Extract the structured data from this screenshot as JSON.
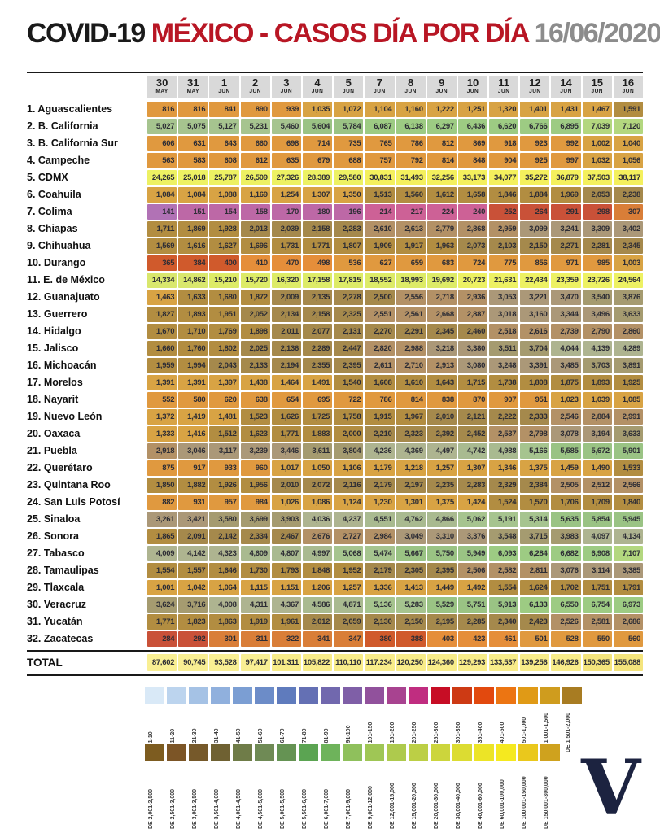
{
  "header": {
    "app": "COVID-19",
    "subtitle": "MÉXICO - CASOS DÍA POR DÍA",
    "date": "16/06/2020"
  },
  "colors": {
    "title_black": "#1a1a1a",
    "title_red": "#b81624",
    "date_gray": "#8c8c8c",
    "header_bg": "#d9d9d9",
    "rule": "#191919",
    "logo_navy": "#1c2340"
  },
  "logo": {
    "letter": "V"
  },
  "chart_data": {
    "type": "heatmap",
    "title": "COVID-19 MÉXICO - CASOS DÍA POR DÍA",
    "date": "16/06/2020",
    "xlabel": "Fecha",
    "ylabel": "Estado",
    "legend_position": "bottom",
    "legend_split": 20,
    "columns": [
      {
        "day": "30",
        "month": "MAY"
      },
      {
        "day": "31",
        "month": "MAY"
      },
      {
        "day": "1",
        "month": "JUN"
      },
      {
        "day": "2",
        "month": "JUN"
      },
      {
        "day": "3",
        "month": "JUN"
      },
      {
        "day": "4",
        "month": "JUN"
      },
      {
        "day": "5",
        "month": "JUN"
      },
      {
        "day": "7",
        "month": "JUN"
      },
      {
        "day": "8",
        "month": "JUN"
      },
      {
        "day": "9",
        "month": "JUN"
      },
      {
        "day": "10",
        "month": "JUN"
      },
      {
        "day": "11",
        "month": "JUN"
      },
      {
        "day": "12",
        "month": "JUN"
      },
      {
        "day": "14",
        "month": "JUN"
      },
      {
        "day": "15",
        "month": "JUN"
      },
      {
        "day": "16",
        "month": "JUN"
      }
    ],
    "rows": [
      {
        "label": "1. Aguascalientes",
        "values": [
          "816",
          "816",
          "841",
          "890",
          "939",
          "1,035",
          "1,072",
          "1,104",
          "1,160",
          "1,222",
          "1,251",
          "1,320",
          "1,401",
          "1,431",
          "1,467",
          "1,591"
        ]
      },
      {
        "label": "2. B. California",
        "values": [
          "5,027",
          "5,075",
          "5,127",
          "5,231",
          "5,460",
          "5,604",
          "5,784",
          "6,087",
          "6,138",
          "6,297",
          "6,436",
          "6,620",
          "6,766",
          "6,895",
          "7,039",
          "7,120"
        ]
      },
      {
        "label": "3. B. California Sur",
        "values": [
          "606",
          "631",
          "643",
          "660",
          "698",
          "714",
          "735",
          "765",
          "786",
          "812",
          "869",
          "918",
          "923",
          "992",
          "1,002",
          "1,040"
        ]
      },
      {
        "label": "4. Campeche",
        "values": [
          "563",
          "583",
          "608",
          "612",
          "635",
          "679",
          "688",
          "757",
          "792",
          "814",
          "848",
          "904",
          "925",
          "997",
          "1,032",
          "1,056"
        ]
      },
      {
        "label": "5. CDMX",
        "values": [
          "24,265",
          "25,018",
          "25,787",
          "26,509",
          "27,326",
          "28,389",
          "29,580",
          "30,831",
          "31,493",
          "32,256",
          "33,173",
          "34,077",
          "35,272",
          "36,879",
          "37,503",
          "38,117"
        ]
      },
      {
        "label": "6. Coahuila",
        "values": [
          "1,084",
          "1,084",
          "1,088",
          "1,169",
          "1,254",
          "1,307",
          "1,350",
          "1,513",
          "1,560",
          "1,612",
          "1,658",
          "1,846",
          "1,884",
          "1,969",
          "2,053",
          "2,238"
        ]
      },
      {
        "label": "7. Colima",
        "values": [
          "141",
          "151",
          "154",
          "158",
          "170",
          "180",
          "196",
          "214",
          "217",
          "224",
          "240",
          "252",
          "264",
          "291",
          "298",
          "307"
        ]
      },
      {
        "label": "8. Chiapas",
        "values": [
          "1,711",
          "1,869",
          "1,928",
          "2,013",
          "2,039",
          "2,158",
          "2,283",
          "2,610",
          "2,613",
          "2,779",
          "2,868",
          "2,959",
          "3,099",
          "3,241",
          "3,309",
          "3,402"
        ]
      },
      {
        "label": "9. Chihuahua",
        "values": [
          "1,569",
          "1,616",
          "1,627",
          "1,696",
          "1,731",
          "1,771",
          "1,807",
          "1,909",
          "1,917",
          "1,963",
          "2,073",
          "2,103",
          "2,150",
          "2,271",
          "2,281",
          "2,345"
        ]
      },
      {
        "label": "10. Durango",
        "values": [
          "365",
          "384",
          "400",
          "410",
          "470",
          "498",
          "536",
          "627",
          "659",
          "683",
          "724",
          "775",
          "856",
          "971",
          "985",
          "1,003"
        ]
      },
      {
        "label": "11. E. de México",
        "values": [
          "14,334",
          "14,862",
          "15,210",
          "15,720",
          "16,320",
          "17,158",
          "17,815",
          "18,552",
          "18,993",
          "19,692",
          "20,723",
          "21,631",
          "22,434",
          "23,359",
          "23,726",
          "24,564"
        ]
      },
      {
        "label": "12. Guanajuato",
        "values": [
          "1,463",
          "1,633",
          "1,680",
          "1,872",
          "2,009",
          "2,135",
          "2,278",
          "2,500",
          "2,556",
          "2,718",
          "2,936",
          "3,053",
          "3,221",
          "3,470",
          "3,540",
          "3,876"
        ]
      },
      {
        "label": "13. Guerrero",
        "values": [
          "1,827",
          "1,893",
          "1,951",
          "2,052",
          "2,134",
          "2,158",
          "2,325",
          "2,551",
          "2,561",
          "2,668",
          "2,887",
          "3,018",
          "3,160",
          "3,344",
          "3,496",
          "3,633"
        ]
      },
      {
        "label": "14. Hidalgo",
        "values": [
          "1,670",
          "1,710",
          "1,769",
          "1,898",
          "2,011",
          "2,077",
          "2,131",
          "2,270",
          "2,291",
          "2,345",
          "2,460",
          "2,518",
          "2,616",
          "2,739",
          "2,790",
          "2,860"
        ]
      },
      {
        "label": "15. Jalisco",
        "values": [
          "1,660",
          "1,760",
          "1,802",
          "2,025",
          "2,136",
          "2,289",
          "2,447",
          "2,820",
          "2,988",
          "3,218",
          "3,380",
          "3,511",
          "3,704",
          "4,044",
          "4,139",
          "4,289"
        ]
      },
      {
        "label": "16. Michoacán",
        "values": [
          "1,959",
          "1,994",
          "2,043",
          "2,133",
          "2,194",
          "2,355",
          "2,395",
          "2,611",
          "2,710",
          "2,913",
          "3,080",
          "3,248",
          "3,391",
          "3,485",
          "3,703",
          "3,891"
        ]
      },
      {
        "label": "17. Morelos",
        "values": [
          "1,391",
          "1,391",
          "1,397",
          "1,438",
          "1,464",
          "1,491",
          "1,540",
          "1,608",
          "1,610",
          "1,643",
          "1,715",
          "1,738",
          "1,808",
          "1,875",
          "1,893",
          "1,925"
        ]
      },
      {
        "label": "18. Nayarit",
        "values": [
          "552",
          "580",
          "620",
          "638",
          "654",
          "695",
          "722",
          "786",
          "814",
          "838",
          "870",
          "907",
          "951",
          "1,023",
          "1,039",
          "1,085"
        ]
      },
      {
        "label": "19. Nuevo León",
        "values": [
          "1,372",
          "1,419",
          "1,481",
          "1,523",
          "1,626",
          "1,725",
          "1,758",
          "1,915",
          "1,967",
          "2,010",
          "2,121",
          "2,222",
          "2,333",
          "2,546",
          "2,884",
          "2,991"
        ]
      },
      {
        "label": "20. Oaxaca",
        "values": [
          "1,333",
          "1,416",
          "1,512",
          "1,623",
          "1,771",
          "1,883",
          "2,000",
          "2,210",
          "2,323",
          "2,392",
          "2,452",
          "2,537",
          "2,798",
          "3,078",
          "3,194",
          "3,633"
        ]
      },
      {
        "label": "21. Puebla",
        "values": [
          "2,918",
          "3,046",
          "3,117",
          "3,239",
          "3,446",
          "3,611",
          "3,804",
          "4,236",
          "4,369",
          "4,497",
          "4,742",
          "4,988",
          "5,166",
          "5,585",
          "5,672",
          "5,901"
        ]
      },
      {
        "label": "22. Querétaro",
        "values": [
          "875",
          "917",
          "933",
          "960",
          "1,017",
          "1,050",
          "1,106",
          "1,179",
          "1,218",
          "1,257",
          "1,307",
          "1,346",
          "1,375",
          "1,459",
          "1,490",
          "1,533"
        ]
      },
      {
        "label": "23. Quintana Roo",
        "values": [
          "1,850",
          "1,882",
          "1,926",
          "1,956",
          "2,010",
          "2,072",
          "2,116",
          "2,179",
          "2,197",
          "2,235",
          "2,283",
          "2,329",
          "2,384",
          "2,505",
          "2,512",
          "2,566"
        ]
      },
      {
        "label": "24. San Luis Potosí",
        "values": [
          "882",
          "931",
          "957",
          "984",
          "1,026",
          "1,086",
          "1,124",
          "1,230",
          "1,301",
          "1,375",
          "1,424",
          "1,524",
          "1,570",
          "1,706",
          "1,709",
          "1,840"
        ]
      },
      {
        "label": "25. Sinaloa",
        "values": [
          "3,261",
          "3,421",
          "3,580",
          "3,699",
          "3,903",
          "4,036",
          "4,237",
          "4,551",
          "4,762",
          "4,866",
          "5,062",
          "5,191",
          "5,314",
          "5,635",
          "5,854",
          "5,945"
        ]
      },
      {
        "label": "26. Sonora",
        "values": [
          "1,865",
          "2,091",
          "2,142",
          "2,334",
          "2,467",
          "2,676",
          "2,727",
          "2,984",
          "3,049",
          "3,310",
          "3,376",
          "3,548",
          "3,715",
          "3,983",
          "4,097",
          "4,134"
        ]
      },
      {
        "label": "27. Tabasco",
        "values": [
          "4,009",
          "4,142",
          "4,323",
          "4,609",
          "4,807",
          "4,997",
          "5,068",
          "5,474",
          "5,667",
          "5,750",
          "5,949",
          "6,093",
          "6,284",
          "6,682",
          "6,908",
          "7,107"
        ]
      },
      {
        "label": "28. Tamaulipas",
        "values": [
          "1,554",
          "1,557",
          "1,646",
          "1,730",
          "1,793",
          "1,848",
          "1,952",
          "2,179",
          "2,305",
          "2,395",
          "2,506",
          "2,582",
          "2,811",
          "3,076",
          "3,114",
          "3,385"
        ]
      },
      {
        "label": "29. Tlaxcala",
        "values": [
          "1,001",
          "1,042",
          "1,064",
          "1,115",
          "1,151",
          "1,206",
          "1,257",
          "1,336",
          "1,413",
          "1,449",
          "1,492",
          "1,554",
          "1,624",
          "1,702",
          "1,751",
          "1,791"
        ]
      },
      {
        "label": "30. Veracruz",
        "values": [
          "3,624",
          "3,716",
          "4,008",
          "4,311",
          "4,367",
          "4,586",
          "4,871",
          "5,136",
          "5,283",
          "5,529",
          "5,751",
          "5,913",
          "6,133",
          "6,550",
          "6,754",
          "6,973"
        ]
      },
      {
        "label": "31. Yucatán",
        "values": [
          "1,771",
          "1,823",
          "1,863",
          "1,919",
          "1,961",
          "2,012",
          "2,059",
          "2,130",
          "2,150",
          "2,195",
          "2,285",
          "2,340",
          "2,423",
          "2,526",
          "2,581",
          "2,686"
        ]
      },
      {
        "label": "32. Zacatecas",
        "values": [
          "284",
          "292",
          "301",
          "311",
          "322",
          "341",
          "347",
          "380",
          "388",
          "403",
          "423",
          "461",
          "501",
          "528",
          "550",
          "560"
        ]
      }
    ],
    "total": {
      "label": "TOTAL",
      "values": [
        "87,602",
        "90,745",
        "93,528",
        "97,417",
        "101,311",
        "105,822",
        "110,110",
        "117.234",
        "120,250",
        "124,360",
        "129,293",
        "133,537",
        "139,256",
        "146,926",
        "150,365",
        "155,088"
      ]
    },
    "value_ranges": [
      {
        "min": 1,
        "max": 10,
        "label": "DE 1-10",
        "legend": "#d9e9f7",
        "cell": "#e4f0fa"
      },
      {
        "min": 11,
        "max": 20,
        "label": "DE 11-20",
        "legend": "#bcd4ee",
        "cell": "#cddff2"
      },
      {
        "min": 21,
        "max": 30,
        "label": "DE 21-30",
        "legend": "#a5c2e5",
        "cell": "#bacfeb"
      },
      {
        "min": 31,
        "max": 40,
        "label": "DE 31-40",
        "legend": "#90b0dd",
        "cell": "#a8c0e4"
      },
      {
        "min": 41,
        "max": 50,
        "label": "DE 41-50",
        "legend": "#7b9ed3",
        "cell": "#95b1dc"
      },
      {
        "min": 51,
        "max": 60,
        "label": "DE 51-60",
        "legend": "#6c8cc8",
        "cell": "#89a3d3"
      },
      {
        "min": 61,
        "max": 70,
        "label": "DE 61-70",
        "legend": "#5f7bbd",
        "cell": "#7f95ca"
      },
      {
        "min": 71,
        "max": 80,
        "label": "DE 71-80",
        "legend": "#6470b4",
        "cell": "#838dc3"
      },
      {
        "min": 81,
        "max": 90,
        "label": "DE 81-90",
        "legend": "#7168ae",
        "cell": "#8d86be"
      },
      {
        "min": 91,
        "max": 100,
        "label": "DE 91-100",
        "legend": "#7f5fa7",
        "cell": "#987fb9"
      },
      {
        "min": 101,
        "max": 150,
        "label": "DE 101-150",
        "legend": "#91519c",
        "cell": "#b172b5"
      },
      {
        "min": 151,
        "max": 200,
        "label": "DE 151-200",
        "legend": "#a84390",
        "cell": "#bd68a6"
      },
      {
        "min": 201,
        "max": 250,
        "label": "DE 201-250",
        "legend": "#c02d80",
        "cell": "#cd6196"
      },
      {
        "min": 251,
        "max": 300,
        "label": "DE 251-300",
        "legend": "#c70d25",
        "cell": "#c95138"
      },
      {
        "min": 301,
        "max": 350,
        "label": "DE 301-350",
        "legend": "#cd3a14",
        "cell": "#d97e38"
      },
      {
        "min": 351,
        "max": 400,
        "label": "DE 351-400",
        "legend": "#e2490e",
        "cell": "#d05a2c"
      },
      {
        "min": 401,
        "max": 500,
        "label": "DE 401-500",
        "legend": "#ec7512",
        "cell": "#e58e3a"
      },
      {
        "min": 501,
        "max": 1000,
        "label": "DE 501-1,000",
        "legend": "#e09a16",
        "cell": "#e0993f"
      },
      {
        "min": 1001,
        "max": 1500,
        "label": "DE 1,001-1,500",
        "legend": "#cf9c1e",
        "cell": "#d8a344"
      },
      {
        "min": 1501,
        "max": 2000,
        "label": "DE 1,501-2,000",
        "legend": "#a87c22",
        "cell": "#b28d41"
      },
      {
        "min": 2001,
        "max": 2500,
        "label": "DE 2,001-2,500",
        "legend": "#7d5c20",
        "cell": "#a5894c"
      },
      {
        "min": 2501,
        "max": 3000,
        "label": "DE 2,501-3,000",
        "legend": "#7c5526",
        "cell": "#b39166"
      },
      {
        "min": 3001,
        "max": 3500,
        "label": "DE 3,001-3,500",
        "legend": "#76592a",
        "cell": "#ab9878"
      },
      {
        "min": 3501,
        "max": 4000,
        "label": "DE 3,501-4,000",
        "legend": "#6f6132",
        "cell": "#a59b70"
      },
      {
        "min": 4001,
        "max": 4500,
        "label": "DE 4,001-4,500",
        "legend": "#6f7c48",
        "cell": "#aeb490"
      },
      {
        "min": 4501,
        "max": 5000,
        "label": "DE 4,501-5,000",
        "legend": "#6f8a55",
        "cell": "#a9ba90"
      },
      {
        "min": 5001,
        "max": 5500,
        "label": "DE 5,001-5,500",
        "legend": "#659353",
        "cell": "#a6c48f"
      },
      {
        "min": 5501,
        "max": 6000,
        "label": "DE 5,501-6,000",
        "legend": "#5ba452",
        "cell": "#9ac384"
      },
      {
        "min": 6001,
        "max": 7000,
        "label": "DE 6,001-7,000",
        "legend": "#6eb35b",
        "cell": "#9dcb83"
      },
      {
        "min": 7001,
        "max": 9000,
        "label": "DE 7,001-9,000",
        "legend": "#8fc05c",
        "cell": "#b3d77f"
      },
      {
        "min": 9001,
        "max": 12000,
        "label": "DE 9,001-12,000",
        "legend": "#9fc655",
        "cell": "#c2dd75"
      },
      {
        "min": 12001,
        "max": 15000,
        "label": "DE 12,001-15,000",
        "legend": "#aeca4d",
        "cell": "#d9e76d"
      },
      {
        "min": 15001,
        "max": 20000,
        "label": "DE 15,001-20,000",
        "legend": "#bccf45",
        "cell": "#ddeb67"
      },
      {
        "min": 20001,
        "max": 30000,
        "label": "DE 20,001-30,000",
        "legend": "#ccd53c",
        "cell": "#edf163"
      },
      {
        "min": 30001,
        "max": 40000,
        "label": "DE 30,001-40,000",
        "legend": "#dcdc32",
        "cell": "#f4f05d"
      },
      {
        "min": 40001,
        "max": 60000,
        "label": "DE 40,001-60,000",
        "legend": "#ece426",
        "cell": "#f7f276"
      },
      {
        "min": 60001,
        "max": 100000,
        "label": "DE 60,001-100,000",
        "legend": "#f5e91f",
        "cell": "#f9ef93"
      },
      {
        "min": 100001,
        "max": 150000,
        "label": "DE 100,001-150,000",
        "legend": "#eac81c",
        "cell": "#f8ec89"
      },
      {
        "min": 150001,
        "max": 300000,
        "label": "DE 150,001-300,000",
        "legend": "#cfa21e",
        "cell": "#f4e47c"
      }
    ]
  }
}
